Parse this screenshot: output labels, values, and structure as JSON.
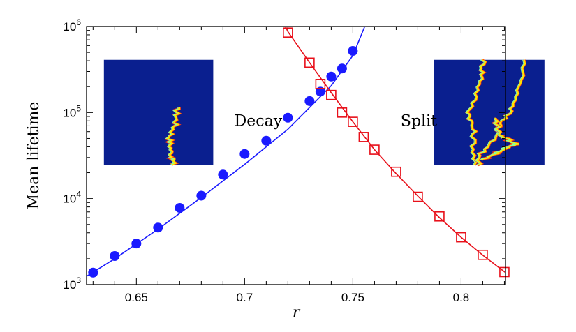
{
  "chart_data": {
    "type": "scatter",
    "title": "",
    "xlabel": "r",
    "ylabel": "Mean lifetime",
    "xlim": [
      0.627,
      0.8205
    ],
    "ylim": [
      1000,
      1000000
    ],
    "y_scale": "log",
    "grid": false,
    "x_ticks": [
      {
        "value": 0.65,
        "label": "0.65"
      },
      {
        "value": 0.7,
        "label": "0.7"
      },
      {
        "value": 0.75,
        "label": "0.75"
      },
      {
        "value": 0.8,
        "label": "0.8"
      }
    ],
    "y_ticks": [
      {
        "value": 1000,
        "base": "10",
        "exp": "3"
      },
      {
        "value": 10000,
        "base": "10",
        "exp": "4"
      },
      {
        "value": 100000,
        "base": "10",
        "exp": "5"
      },
      {
        "value": 1000000,
        "base": "10",
        "exp": "6"
      }
    ],
    "series": [
      {
        "marker": "filled-circle",
        "color": "#1a1aff",
        "x": [
          0.63,
          0.64,
          0.65,
          0.66,
          0.67,
          0.68,
          0.69,
          0.7,
          0.71,
          0.72,
          0.73,
          0.735,
          0.74,
          0.745,
          0.75
        ],
        "y": [
          1380,
          2150,
          3000,
          4600,
          7800,
          10800,
          19000,
          33000,
          47000,
          87000,
          136000,
          175000,
          262000,
          325000,
          520000
        ],
        "fit_x": [
          0.627,
          0.64,
          0.66,
          0.68,
          0.7,
          0.72,
          0.74,
          0.75,
          0.7555
        ],
        "fit_y": [
          1250,
          2000,
          4400,
          10300,
          25000,
          64000,
          205000,
          460000,
          1000000
        ]
      },
      {
        "marker": "open-square",
        "color": "#e8101a",
        "x": [
          0.72,
          0.73,
          0.735,
          0.74,
          0.745,
          0.75,
          0.755,
          0.76,
          0.77,
          0.78,
          0.79,
          0.8,
          0.81,
          0.82
        ],
        "y": [
          850000,
          380000,
          215000,
          160000,
          100000,
          78000,
          52000,
          37000,
          20500,
          10500,
          6200,
          3550,
          2220,
          1400
        ],
        "fit_x": [
          0.7188,
          0.72,
          0.73,
          0.74,
          0.75,
          0.76,
          0.77,
          0.78,
          0.79,
          0.8,
          0.81,
          0.8205
        ],
        "fit_y": [
          1000000,
          870000,
          380000,
          170000,
          78000,
          37000,
          19500,
          10700,
          6000,
          3550,
          2200,
          1380
        ]
      }
    ],
    "annotations": [
      {
        "text": "Decay",
        "x": 0.7063,
        "y": 70000
      },
      {
        "text": "Split",
        "x": 0.7805,
        "y": 70000
      }
    ],
    "insets": [
      {
        "name": "decay-inset",
        "background": "#0a1f8f",
        "x_range": [
          0.635,
          0.6855
        ],
        "y_range": [
          24500,
          410000
        ]
      },
      {
        "name": "split-inset",
        "background": "#0a1f8f",
        "x_range": [
          0.7875,
          0.8385
        ],
        "y_range": [
          24500,
          410000
        ]
      }
    ]
  }
}
